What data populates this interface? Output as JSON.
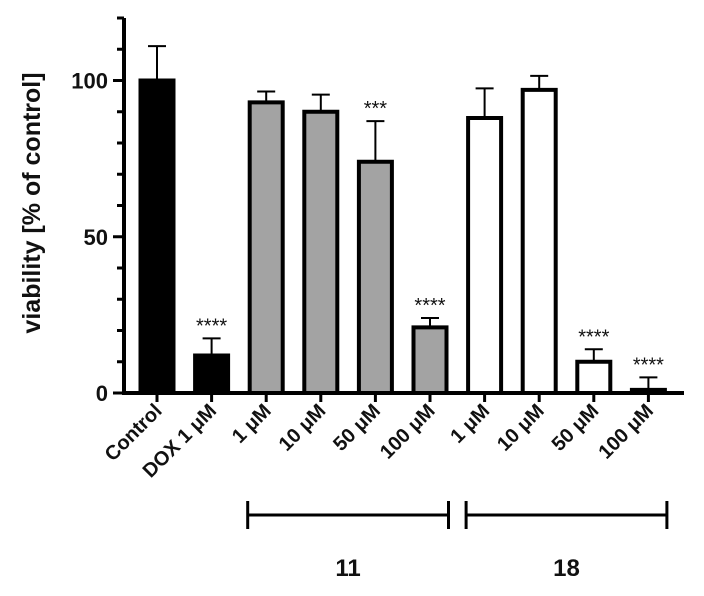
{
  "chart_data": {
    "type": "bar",
    "ylabel": "viability [% of control]",
    "ylim": [
      0,
      120
    ],
    "yticks": [
      0,
      50,
      100
    ],
    "grid": false,
    "categories": [
      "Control",
      "DOX 1 μM",
      "1 μM",
      "10 μM",
      "50 μM",
      "100 μM",
      "1 μM",
      "10 μM",
      "50 μM",
      "100 μM"
    ],
    "values": [
      100,
      12,
      93,
      90,
      74,
      21,
      88,
      97,
      10,
      1
    ],
    "errors": [
      11,
      5.5,
      3.5,
      5.5,
      13,
      3,
      9.5,
      4.5,
      4,
      4
    ],
    "significance": [
      "",
      "****",
      "",
      "",
      "***",
      "****",
      "",
      "",
      "****",
      "****"
    ],
    "fills": [
      "#000000",
      "#000000",
      "#a3a3a3",
      "#a3a3a3",
      "#a3a3a3",
      "#a3a3a3",
      "#ffffff",
      "#ffffff",
      "#ffffff",
      "#ffffff"
    ],
    "groups": [
      {
        "label": "11",
        "from": 2,
        "to": 5
      },
      {
        "label": "18",
        "from": 6,
        "to": 9
      }
    ]
  }
}
